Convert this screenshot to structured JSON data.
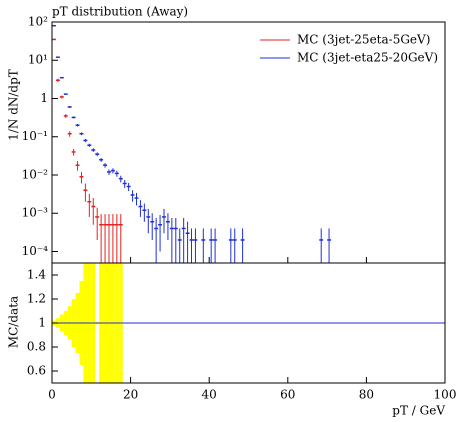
{
  "chart_data": [
    {
      "type": "errorbar",
      "title": "pT distribution (Away)",
      "ylabel": "1/N dN/dpT",
      "log_y": true,
      "legend": "upper right",
      "xlim": [
        0,
        100
      ],
      "ylim": [
        5e-05,
        100
      ],
      "yticks": [
        {
          "value": 0.0001,
          "label": "10⁻⁴"
        },
        {
          "value": 0.001,
          "label": "10⁻³"
        },
        {
          "value": 0.01,
          "label": "10⁻²"
        },
        {
          "value": 0.1,
          "label": "10⁻¹"
        },
        {
          "value": 1,
          "label": "1"
        },
        {
          "value": 10,
          "label": "10¹"
        },
        {
          "value": 100,
          "label": "10²"
        }
      ],
      "series": [
        {
          "name": "MC (3jet-25eta-5GeV)",
          "color": "#e8201c",
          "x": [
            0.5,
            1.5,
            2.5,
            3.5,
            4.5,
            5.5,
            6.5,
            7.5,
            8.5,
            9.5,
            10.5,
            11.5,
            12.5,
            13.5,
            14.5,
            15.5,
            16.5,
            17.5
          ],
          "values": [
            35,
            3,
            1.1,
            0.35,
            0.12,
            0.04,
            0.018,
            0.009,
            0.004,
            0.002,
            0.0015,
            0.0008,
            0.0005,
            0.0005,
            0.0005,
            0.0005,
            0.0005,
            0.0005
          ],
          "errors": [
            1,
            0.3,
            0.1,
            0.04,
            0.02,
            0.008,
            0.005,
            0.003,
            0.002,
            0.0012,
            0.001,
            0.0006,
            0.00045,
            0.00045,
            0.00045,
            0.00045,
            0.00045,
            0.00045
          ]
        },
        {
          "name": "MC (3jet-eta25-20GeV)",
          "color": "#1f2fd8",
          "x": [
            0.5,
            1.5,
            2.5,
            3.5,
            4.5,
            5.5,
            6.5,
            7.5,
            8.5,
            9.5,
            10.5,
            11.5,
            12.5,
            13.5,
            14.5,
            15.5,
            16.5,
            17.5,
            18.5,
            19.5,
            20.5,
            21.5,
            22.5,
            23.5,
            24.5,
            25.5,
            26.5,
            27.5,
            28.5,
            29.5,
            30.5,
            31.5,
            32.5,
            33.5,
            34.5,
            35.5,
            36.5,
            38.5,
            40.5,
            41.5,
            45.5,
            46.5,
            48.5,
            68.5,
            70.5
          ],
          "values": [
            80,
            12,
            3.5,
            1.3,
            0.6,
            0.32,
            0.2,
            0.12,
            0.08,
            0.06,
            0.045,
            0.035,
            0.025,
            0.018,
            0.012,
            0.013,
            0.011,
            0.008,
            0.006,
            0.005,
            0.003,
            0.0025,
            0.0015,
            0.0012,
            0.0008,
            0.0006,
            0.0004,
            0.0005,
            0.0008,
            0.0006,
            0.0004,
            0.0004,
            0.0002,
            0.0004,
            0.0003,
            0.0002,
            0.0002,
            0.0002,
            0.0002,
            0.0002,
            0.0002,
            0.0002,
            0.0002,
            0.0002,
            0.0002
          ],
          "errors": [
            1,
            0.3,
            0.1,
            0.05,
            0.03,
            0.02,
            0.015,
            0.01,
            0.008,
            0.006,
            0.005,
            0.004,
            0.003,
            0.0025,
            0.002,
            0.002,
            0.002,
            0.0016,
            0.0014,
            0.0012,
            0.001,
            0.0009,
            0.0007,
            0.0006,
            0.0005,
            0.0004,
            0.00035,
            0.0004,
            0.0005,
            0.0004,
            0.00035,
            0.00035,
            0.0002,
            0.00035,
            0.0003,
            0.0002,
            0.0002,
            0.0002,
            0.0002,
            0.0002,
            0.0002,
            0.0002,
            0.0002,
            0.0002,
            0.0002
          ]
        }
      ]
    },
    {
      "type": "ratio",
      "ylabel": "MC/data",
      "xlabel": "pT / GeV",
      "xlim": [
        0,
        100
      ],
      "ylim": [
        0.5,
        1.5
      ],
      "xticks": [
        0,
        20,
        40,
        60,
        80,
        100
      ],
      "yticks": [
        0.6,
        0.8,
        1,
        1.2,
        1.4
      ],
      "bins": [
        0,
        1,
        2,
        3,
        4,
        5,
        6,
        7,
        8,
        9,
        10,
        11,
        12,
        13,
        14,
        15,
        16,
        17,
        18
      ],
      "band": [
        0.02,
        0.04,
        0.07,
        0.1,
        0.14,
        0.2,
        0.25,
        0.35,
        0.5,
        0.7,
        0.8,
        0.01,
        0.9,
        0.9,
        0.9,
        0.9,
        0.9,
        0.9
      ],
      "band_color": "#ffff00",
      "series": [
        {
          "color": "#e8201c",
          "x": [
            0,
            100
          ],
          "values": [
            1,
            1
          ]
        },
        {
          "color": "#1f2fd8",
          "x": [
            0,
            100
          ],
          "values": [
            1,
            1
          ]
        }
      ]
    }
  ]
}
